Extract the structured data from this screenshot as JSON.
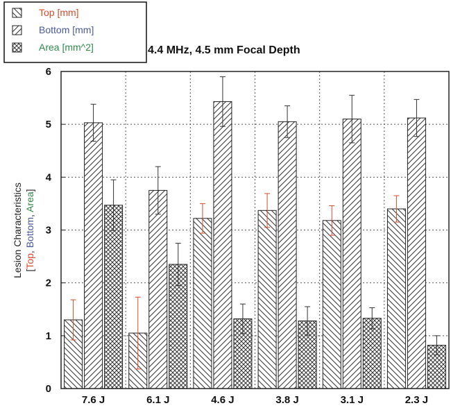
{
  "chart_data": {
    "type": "bar",
    "title": "4.4 MHz, 4.5 mm Focal Depth",
    "categories": [
      "7.6 J",
      "6.1 J",
      "4.6 J",
      "3.8 J",
      "3.1 J",
      "2.3 J"
    ],
    "ylabel_line1": "Lesion Characteristics",
    "ylabel_line2": {
      "open": "[",
      "top": "Top",
      "sep1": ", ",
      "bottom": "Bottom",
      "sep2": ", ",
      "area": "Area",
      "close": "]"
    },
    "ylim": [
      0,
      6
    ],
    "yticks": [
      "0",
      "1",
      "2",
      "3",
      "4",
      "5",
      "6"
    ],
    "grid": true,
    "legend_position": "top-left",
    "series": [
      {
        "name": "Top [mm]",
        "color": "#d84a2a",
        "pattern": "hatch-back",
        "values": [
          1.3,
          1.05,
          3.22,
          3.37,
          3.18,
          3.4
        ],
        "errors": [
          0.38,
          0.68,
          0.28,
          0.32,
          0.28,
          0.25
        ]
      },
      {
        "name": "Bottom [mm]",
        "color": "#4a5a9a",
        "pattern": "hatch-forward",
        "values": [
          5.03,
          3.75,
          5.43,
          5.05,
          5.1,
          5.12
        ],
        "errors": [
          0.35,
          0.45,
          0.47,
          0.3,
          0.45,
          0.35
        ]
      },
      {
        "name": "Area [mm^2]",
        "color": "#2f8a4a",
        "pattern": "crosshatch",
        "values": [
          3.47,
          2.35,
          1.32,
          1.28,
          1.33,
          0.82
        ],
        "errors": [
          0.48,
          0.4,
          0.28,
          0.27,
          0.2,
          0.18
        ]
      }
    ]
  }
}
